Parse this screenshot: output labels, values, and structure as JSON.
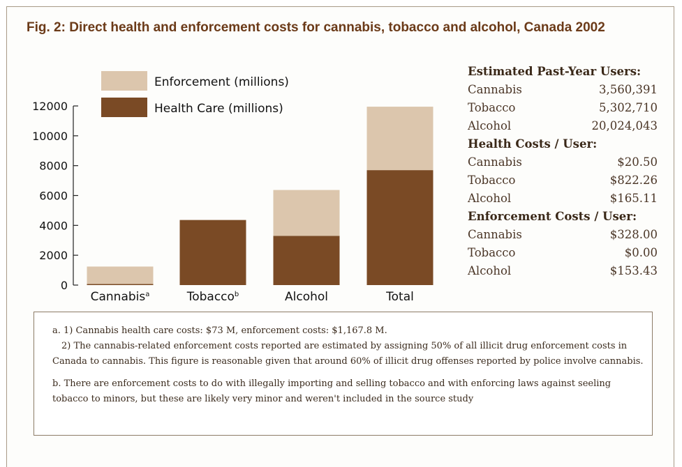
{
  "title": "Fig. 2: Direct health and enforcement costs for cannabis, tobacco and alcohol, Canada 2002",
  "colors": {
    "enforcement": "#dcc6ad",
    "health_care": "#7a4a25",
    "title": "#6b3a18",
    "border": "#8c7b66"
  },
  "chart_data": {
    "type": "bar",
    "stacked": true,
    "categories": [
      "Cannabis",
      "Tobacco",
      "Alcohol",
      "Total"
    ],
    "category_markers": [
      "a",
      "b",
      "",
      ""
    ],
    "series": [
      {
        "name": "Health Care (millions)",
        "values": [
          73,
          4360,
          3300,
          7700
        ]
      },
      {
        "name": "Enforcement (millions)",
        "values": [
          1167.8,
          0,
          3070,
          4250
        ]
      }
    ],
    "ylim": [
      0,
      12000
    ],
    "yticks": [
      "0",
      "2000",
      "4000",
      "6000",
      "8000",
      "10000",
      "12000"
    ],
    "legend": [
      "Enforcement (millions)",
      "Health Care (millions)"
    ],
    "legend_position": "top-left",
    "grid": false
  },
  "stats": {
    "users_header": "Estimated Past-Year Users:",
    "users": [
      {
        "label": "Cannabis",
        "value": "3,560,391"
      },
      {
        "label": "Tobacco",
        "value": "5,302,710"
      },
      {
        "label": "Alcohol",
        "value": "20,024,043"
      }
    ],
    "health_header": "Health Costs / User:",
    "health": [
      {
        "label": "Cannabis",
        "value": "$20.50"
      },
      {
        "label": "Tobacco",
        "value": "$822.26"
      },
      {
        "label": "Alcohol",
        "value": "$165.11"
      }
    ],
    "enforcement_header": "Enforcement Costs / User:",
    "enforcement": [
      {
        "label": "Cannabis",
        "value": "$328.00"
      },
      {
        "label": "Tobacco",
        "value": "$0.00"
      },
      {
        "label": "Alcohol",
        "value": "$153.43"
      }
    ]
  },
  "notes": {
    "a1": "a. 1) Cannabis health care costs: $73 M, enforcement costs: $1,167.8 M.",
    "a2": "2) The cannabis-related enforcement costs reported are estimated by assigning 50% of all illicit drug enforcement costs in Canada to cannabis. This figure is reasonable given that around 60% of illicit drug offenses reported by police involve cannabis.",
    "b": "b. There are enforcement costs to do with illegally importing and selling tobacco and with enforcing laws against seeling tobacco to minors, but these are likely very minor and weren't included in the source study"
  }
}
